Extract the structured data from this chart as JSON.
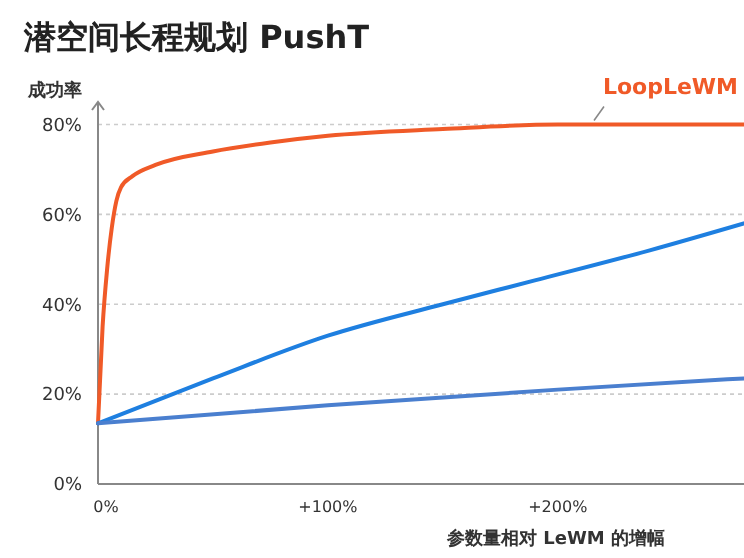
{
  "chart_data": {
    "type": "line",
    "title": "潜空间长程规划 PushT",
    "ylabel": "成功率",
    "xlabel": "参数量相对 LeWM 的增幅",
    "xlim": [
      0,
      281
    ],
    "xticks": [
      {
        "value": 0,
        "label": "0%"
      },
      {
        "value": 100,
        "label": "+100%"
      },
      {
        "value": 200,
        "label": "+200%"
      }
    ],
    "ylim": [
      0,
      85
    ],
    "yticks": [
      {
        "value": 0,
        "label": "0%"
      },
      {
        "value": 20,
        "label": "20%"
      },
      {
        "value": 40,
        "label": "40%"
      },
      {
        "value": 60,
        "label": "60%"
      },
      {
        "value": 80,
        "label": "80%"
      }
    ],
    "grid": "y",
    "marker": "none",
    "line_style": "solid",
    "series": [
      {
        "name": "LoopLeWM",
        "color": "#f05a28",
        "x": [
          0,
          2,
          4,
          6,
          8,
          10,
          15,
          25,
          50,
          75,
          100,
          150,
          200,
          281
        ],
        "values": [
          13.5,
          35,
          48,
          57,
          63,
          66,
          68.5,
          71,
          74,
          76,
          77.5,
          79,
          80,
          80
        ]
      },
      {
        "color": "#1e7fe0",
        "x": [
          0,
          50,
          100,
          150,
          190,
          240,
          281
        ],
        "values": [
          13.5,
          23.5,
          33,
          40,
          45.3,
          52,
          58
        ]
      },
      {
        "color": "#4a7fcf",
        "x": [
          0,
          100,
          200,
          281
        ],
        "values": [
          13.5,
          17.5,
          21,
          23.5
        ]
      }
    ]
  }
}
